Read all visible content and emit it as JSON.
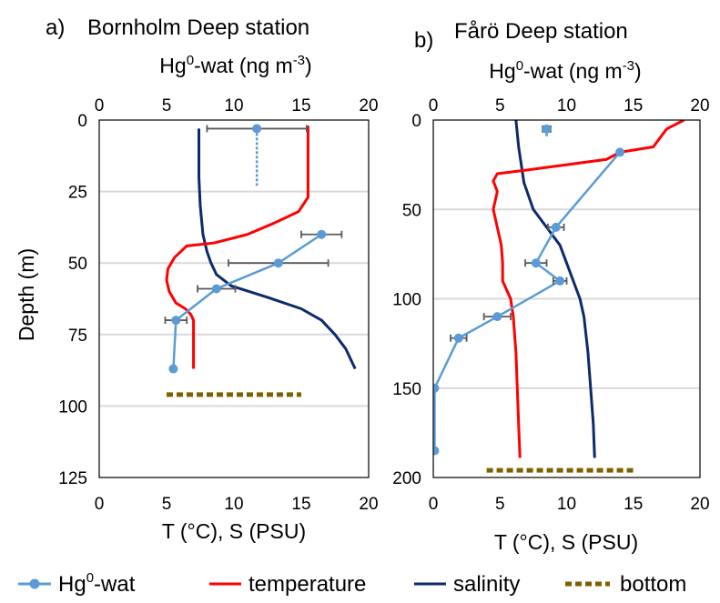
{
  "y_axis_label": "Depth (m)",
  "top_axis_label": {
    "main": "Hg",
    "sup1": "0",
    "mid": "-wat (ng m",
    "sup2": "-3",
    "end": ")"
  },
  "bottom_axis_label": "T (°C), S (PSU)",
  "legend": {
    "hg": {
      "main": "Hg",
      "sup": "0",
      "end": "-wat"
    },
    "temperature": "temperature",
    "salinity": "salinity",
    "bottom": "bottom"
  },
  "colors": {
    "hg": "#5b9bd5",
    "temperature": "#ff0000",
    "salinity": "#0d2a6b",
    "bottom": "#7f6000",
    "grid": "#d9d9d9",
    "errorbar": "#595959"
  },
  "chart_data": [
    {
      "type": "line",
      "panel_letter": "a)",
      "title": "Bornholm Deep station",
      "y_ticks": [
        "0",
        "25",
        "50",
        "75",
        "100",
        "125"
      ],
      "top_ticks": [
        "0",
        "5",
        "10",
        "15",
        "20"
      ],
      "bottom_ticks": [
        "0",
        "5",
        "10",
        "15",
        "20"
      ],
      "y_range": [
        0,
        125
      ],
      "x_range": [
        0,
        20
      ],
      "y_reversed": true,
      "grid": true,
      "hg_wat": {
        "depth": [
          3,
          40,
          50,
          59,
          70,
          87
        ],
        "value": [
          11.7,
          16.5,
          13.3,
          8.7,
          5.7,
          5.5
        ],
        "err": [
          3.7,
          1.5,
          3.7,
          1.4,
          0.8,
          0
        ],
        "dashed_to_depth": 23
      },
      "temperature": {
        "depth": [
          2,
          22,
          27,
          32,
          36,
          40,
          43,
          44,
          48,
          52,
          56,
          60,
          64,
          66,
          68,
          70,
          80,
          87
        ],
        "value": [
          15.5,
          15.5,
          15.5,
          14.8,
          13,
          11,
          8.5,
          6.5,
          5.6,
          5.1,
          5.0,
          5.2,
          5.7,
          6.4,
          6.8,
          7,
          7,
          7
        ]
      },
      "salinity": {
        "depth": [
          3,
          20,
          30,
          40,
          46,
          50,
          54,
          58,
          62,
          66,
          70,
          75,
          80,
          85,
          87
        ],
        "value": [
          7.4,
          7.4,
          7.5,
          7.7,
          8.0,
          8.3,
          8.7,
          9.8,
          12.5,
          15.0,
          16.5,
          17.5,
          18.3,
          18.8,
          19
        ]
      },
      "bottom": {
        "depth": 96,
        "x_start": 5,
        "x_end": 15
      }
    },
    {
      "type": "line",
      "panel_letter": "b)",
      "title": "Fårö Deep station",
      "y_ticks": [
        "0",
        "50",
        "100",
        "150",
        "200"
      ],
      "top_ticks": [
        "0",
        "5",
        "10",
        "15",
        "20"
      ],
      "bottom_ticks": [
        "0",
        "5",
        "10",
        "15",
        "20"
      ],
      "y_range": [
        0,
        200
      ],
      "x_range": [
        0,
        20
      ],
      "y_reversed": true,
      "grid": true,
      "hg_wat": {
        "depth": [
          5,
          18,
          60,
          80,
          90,
          110,
          122,
          150,
          185
        ],
        "value": [
          8.5,
          14,
          9.2,
          7.7,
          9.5,
          4.8,
          1.9,
          0.1,
          0.1
        ],
        "err": [
          0.3,
          0,
          0.6,
          0.8,
          0.5,
          1.0,
          0.6,
          0,
          0
        ],
        "dashed_to_depth": 10
      },
      "temperature": {
        "depth": [
          0,
          5,
          10,
          15,
          18,
          22,
          25,
          28,
          30,
          34,
          40,
          50,
          60,
          70,
          80,
          90,
          100,
          110,
          130,
          150,
          170,
          189
        ],
        "value": [
          18.8,
          17.5,
          17,
          16.5,
          14,
          13,
          10,
          7,
          4.8,
          4.5,
          4.8,
          4.5,
          4.8,
          5.1,
          5.2,
          5.2,
          5.8,
          6.0,
          6.2,
          6.3,
          6.4,
          6.5
        ]
      },
      "salinity": {
        "depth": [
          0,
          15,
          25,
          35,
          50,
          60,
          70,
          80,
          90,
          100,
          110,
          130,
          150,
          170,
          189
        ],
        "value": [
          6.2,
          6.4,
          6.6,
          6.8,
          7.5,
          8.5,
          9.5,
          10.0,
          10.5,
          11.0,
          11.3,
          11.6,
          11.8,
          12.0,
          12.1
        ]
      },
      "bottom": {
        "depth": 196,
        "x_start": 4,
        "x_end": 15
      }
    }
  ]
}
